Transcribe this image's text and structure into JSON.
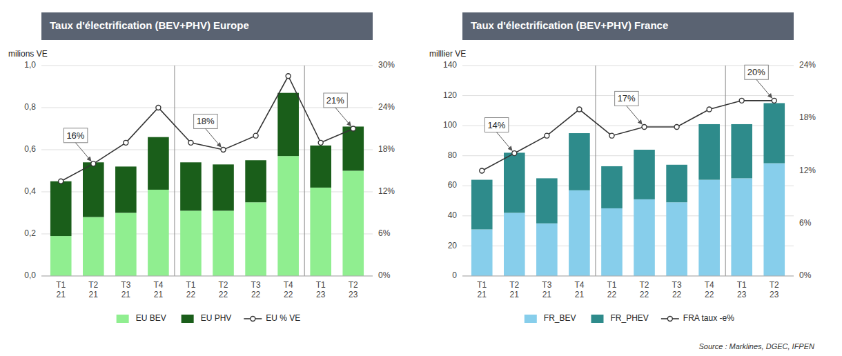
{
  "chart_data": [
    {
      "type": "bar",
      "stacked": true,
      "title": "Taux d'électrification (BEV+PHV) Europe",
      "ylabel": "milions VE",
      "categories": [
        "T1\n21",
        "T2\n21",
        "T3\n21",
        "T4\n21",
        "T1\n22",
        "T2\n22",
        "T3\n22",
        "T4\n22",
        "T1\n23",
        "T2\n23"
      ],
      "series": [
        {
          "name": "EU BEV",
          "color": "#90EE90",
          "values": [
            0.19,
            0.28,
            0.3,
            0.41,
            0.31,
            0.31,
            0.35,
            0.57,
            0.42,
            0.5
          ]
        },
        {
          "name": "EU PHV",
          "color": "#1a5e1a",
          "values": [
            0.26,
            0.26,
            0.22,
            0.25,
            0.23,
            0.22,
            0.2,
            0.3,
            0.2,
            0.21
          ]
        },
        {
          "name": "EU % VE",
          "type": "line",
          "axis": "y2",
          "color": "#333333",
          "marker": "circle",
          "values": [
            0.135,
            0.16,
            0.19,
            0.24,
            0.19,
            0.18,
            0.2,
            0.285,
            0.19,
            0.21
          ]
        }
      ],
      "ylim": [
        0,
        1.0
      ],
      "yticks": [
        {
          "value": 0.0,
          "label": "0,0"
        },
        {
          "value": 0.2,
          "label": "0,2"
        },
        {
          "value": 0.4,
          "label": "0,4"
        },
        {
          "value": 0.6,
          "label": "0,6"
        },
        {
          "value": 0.8,
          "label": "0,8"
        },
        {
          "value": 1.0,
          "label": "1,0"
        }
      ],
      "y2lim": [
        0,
        0.3
      ],
      "y2ticks": [
        {
          "value": 0.0,
          "label": "0%"
        },
        {
          "value": 0.06,
          "label": "6%"
        },
        {
          "value": 0.12,
          "label": "12%"
        },
        {
          "value": 0.18,
          "label": "18%"
        },
        {
          "value": 0.24,
          "label": "24%"
        },
        {
          "value": 0.3,
          "label": "30%"
        }
      ],
      "annotations": [
        {
          "text": "16%",
          "x": "T2\n21",
          "y": 0.16
        },
        {
          "text": "18%",
          "x": "T2\n22",
          "y": 0.18
        },
        {
          "text": "21%",
          "x": "T2\n23",
          "y": 0.21
        }
      ],
      "grid": true,
      "legend": "bottom"
    },
    {
      "type": "bar",
      "stacked": true,
      "title": "Taux d'électrification (BEV+PHV) France",
      "ylabel": "milllier VE",
      "source": "Source : Marklines, DGEC, IFPEN",
      "categories": [
        "T1\n21",
        "T2\n21",
        "T3\n21",
        "T4\n21",
        "T1\n22",
        "T2\n22",
        "T3\n22",
        "T4\n22",
        "T1\n23",
        "T2\n23"
      ],
      "series": [
        {
          "name": "FR_BEV",
          "color": "#87CEEB",
          "values": [
            31,
            42,
            35,
            57,
            45,
            51,
            49,
            64,
            65,
            75
          ]
        },
        {
          "name": "FR_PHEV",
          "color": "#2E8B8B",
          "values": [
            33,
            40,
            30,
            38,
            28,
            33,
            25,
            37,
            36,
            40
          ]
        },
        {
          "name": "FRA taux -e%",
          "type": "line",
          "axis": "y2",
          "color": "#333333",
          "marker": "circle",
          "values": [
            0.12,
            0.14,
            0.16,
            0.19,
            0.16,
            0.17,
            0.17,
            0.19,
            0.2,
            0.2
          ]
        }
      ],
      "ylim": [
        0,
        140
      ],
      "yticks": [
        0,
        20,
        40,
        60,
        80,
        100,
        120,
        140
      ],
      "y2lim": [
        0,
        0.24
      ],
      "y2ticks": [
        {
          "value": 0.0,
          "label": "0%"
        },
        {
          "value": 0.06,
          "label": "6%"
        },
        {
          "value": 0.12,
          "label": "12%"
        },
        {
          "value": 0.18,
          "label": "18%"
        },
        {
          "value": 0.24,
          "label": "24%"
        }
      ],
      "annotations": [
        {
          "text": "14%",
          "x": "T2\n21",
          "y": 0.14
        },
        {
          "text": "17%",
          "x": "T2\n22",
          "y": 0.17
        },
        {
          "text": "20%",
          "x": "T2\n23",
          "y": 0.2
        }
      ],
      "grid": true,
      "legend": "bottom"
    }
  ]
}
